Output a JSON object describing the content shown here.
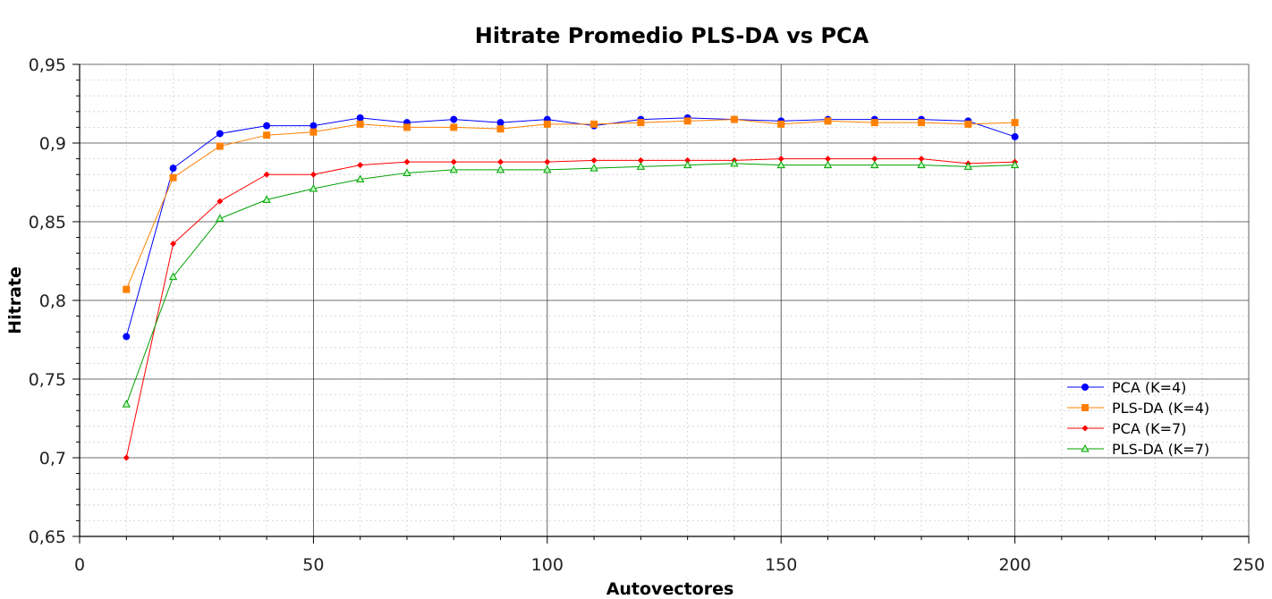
{
  "chart_data": {
    "type": "line",
    "title": "Hitrate Promedio PLS-DA vs PCA",
    "xlabel": "Autovectores",
    "ylabel": "Hitrate",
    "xlim": [
      0,
      250
    ],
    "ylim": [
      0.65,
      0.95
    ],
    "x_ticks": [
      "0",
      "50",
      "100",
      "150",
      "200",
      "250"
    ],
    "y_ticks": [
      "0,65",
      "0,7",
      "0,75",
      "0,8",
      "0,85",
      "0,9",
      "0,95"
    ],
    "grid": true,
    "legend_position": "right",
    "x": [
      10,
      20,
      30,
      40,
      50,
      60,
      70,
      80,
      90,
      100,
      110,
      120,
      130,
      140,
      150,
      160,
      170,
      180,
      190,
      200
    ],
    "series": [
      {
        "name": "PCA (K=4)",
        "color": "#0000ff",
        "marker": "circle",
        "values": [
          0.777,
          0.884,
          0.906,
          0.911,
          0.911,
          0.916,
          0.913,
          0.915,
          0.913,
          0.915,
          0.911,
          0.915,
          0.916,
          0.915,
          0.914,
          0.915,
          0.915,
          0.915,
          0.914,
          0.904
        ]
      },
      {
        "name": "PLS-DA (K=4)",
        "color": "#ff8000",
        "marker": "square",
        "values": [
          0.807,
          0.878,
          0.898,
          0.905,
          0.907,
          0.912,
          0.91,
          0.91,
          0.909,
          0.912,
          0.912,
          0.913,
          0.914,
          0.915,
          0.912,
          0.914,
          0.913,
          0.913,
          0.912,
          0.913
        ]
      },
      {
        "name": "PCA (K=7)",
        "color": "#ff0000",
        "marker": "diamond",
        "values": [
          0.7,
          0.836,
          0.863,
          0.88,
          0.88,
          0.886,
          0.888,
          0.888,
          0.888,
          0.888,
          0.889,
          0.889,
          0.889,
          0.889,
          0.89,
          0.89,
          0.89,
          0.89,
          0.887,
          0.888
        ]
      },
      {
        "name": "PLS-DA (K=7)",
        "color": "#00a000",
        "marker": "triangle",
        "values": [
          0.734,
          0.815,
          0.852,
          0.864,
          0.871,
          0.877,
          0.881,
          0.883,
          0.883,
          0.883,
          0.884,
          0.885,
          0.886,
          0.887,
          0.886,
          0.886,
          0.886,
          0.886,
          0.885,
          0.886
        ]
      }
    ]
  }
}
